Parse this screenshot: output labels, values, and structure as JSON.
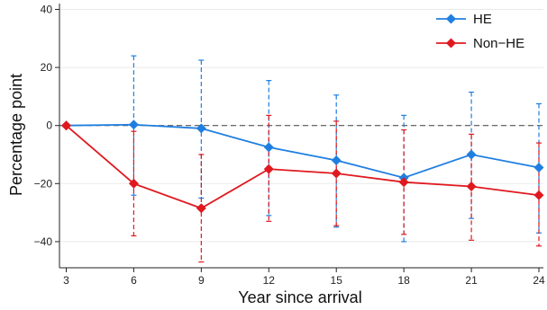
{
  "chart_data": {
    "type": "line",
    "title": "",
    "xlabel": "Year since arrival",
    "ylabel": "Percentage point",
    "x": [
      3,
      6,
      9,
      12,
      15,
      18,
      21,
      24
    ],
    "x_ticks": [
      "3",
      "6",
      "9",
      "12",
      "15",
      "18",
      "21",
      "24"
    ],
    "y_ticks": [
      -40,
      -20,
      0,
      20,
      40
    ],
    "ylim": [
      -49,
      42
    ],
    "xlim": [
      2.7,
      24.2
    ],
    "grid": true,
    "reference_line": {
      "y": 0,
      "style": "dashed",
      "color": "#555555"
    },
    "legend_position": "top-right",
    "error_bar_style": "dashed",
    "series": [
      {
        "name": "HE",
        "color": "#1f7fe0",
        "marker": "diamond",
        "values": [
          0,
          0.3,
          -1.0,
          -7.5,
          -12.0,
          -18.0,
          -10.0,
          -14.5
        ],
        "ci_low": [
          0,
          -24,
          -25,
          -31,
          -35,
          -40,
          -32,
          -37
        ],
        "ci_high": [
          0,
          24,
          22.5,
          15.5,
          10.5,
          3.5,
          11.5,
          7.5
        ]
      },
      {
        "name": "Non−HE",
        "color": "#e0191f",
        "marker": "diamond",
        "values": [
          0,
          -20.0,
          -28.5,
          -15.0,
          -16.5,
          -19.5,
          -21.0,
          -24.0
        ],
        "ci_low": [
          0,
          -38,
          -47,
          -33,
          -34.5,
          -37.5,
          -39.5,
          -41.5
        ],
        "ci_high": [
          0,
          -2,
          -10,
          3.5,
          1.5,
          -1.5,
          -3.0,
          -6.0
        ]
      }
    ]
  }
}
